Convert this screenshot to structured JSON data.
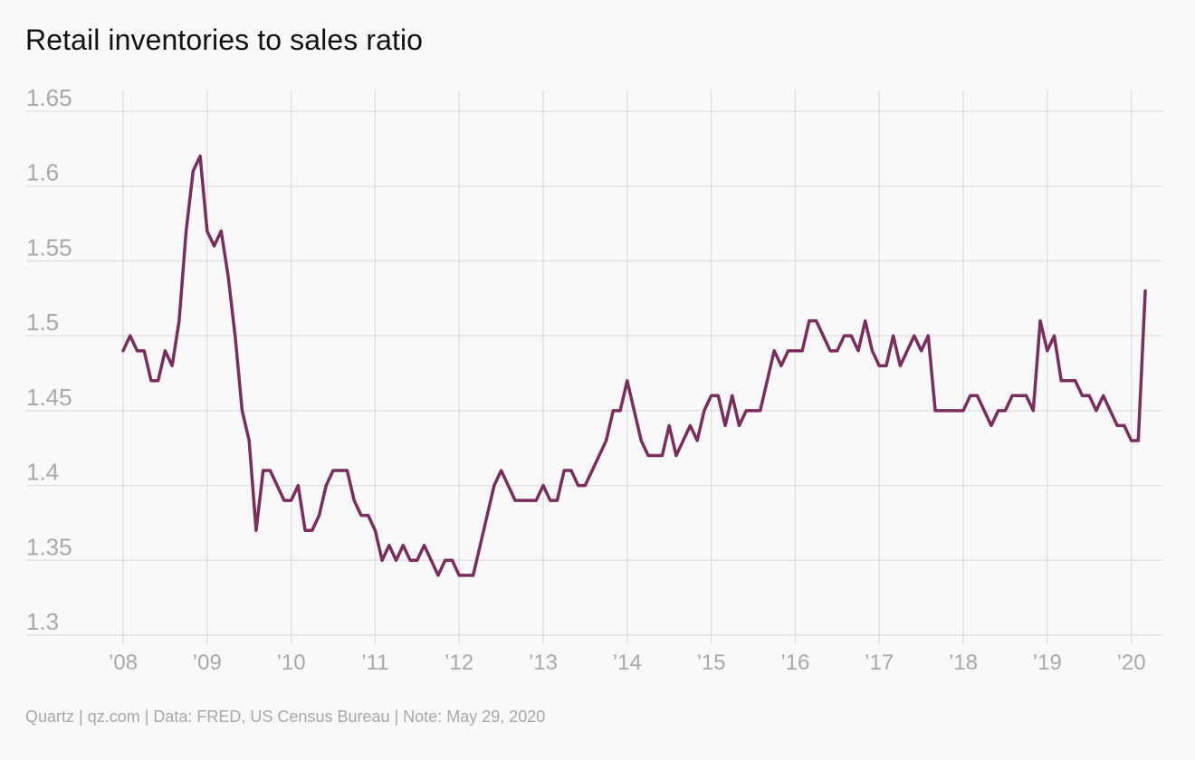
{
  "title": "Retail inventories to sales ratio",
  "footer": "Quartz | qz.com | Data: FRED, US Census Bureau | Note: May 29, 2020",
  "colors": {
    "line": "#7b2d5e",
    "grid": "#e3e3e3",
    "tick_text": "#a9a9a9",
    "background": "#f9f9f9"
  },
  "chart_data": {
    "type": "line",
    "title": "Retail inventories to sales ratio",
    "xlabel": "",
    "ylabel": "",
    "grid": true,
    "legend": "none",
    "ylim": [
      1.3,
      1.65
    ],
    "y_ticks": [
      1.3,
      1.35,
      1.4,
      1.45,
      1.5,
      1.55,
      1.6,
      1.65
    ],
    "y_tick_labels": [
      "1.3",
      "1.35",
      "1.4",
      "1.45",
      "1.5",
      "1.55",
      "1.6",
      "1.65"
    ],
    "x_ticks": [
      2008,
      2009,
      2010,
      2011,
      2012,
      2013,
      2014,
      2015,
      2016,
      2017,
      2018,
      2019,
      2020
    ],
    "x_tick_labels": [
      "’08",
      "’09",
      "’10",
      "’11",
      "’12",
      "’13",
      "’14",
      "’15",
      "’16",
      "’17",
      "’18",
      "’19",
      "’20"
    ],
    "x_start": "2008-01",
    "x_end": "2020-03",
    "frequency": "monthly",
    "series": [
      {
        "values": [
          1.49,
          1.5,
          1.49,
          1.49,
          1.47,
          1.47,
          1.49,
          1.48,
          1.51,
          1.57,
          1.61,
          1.62,
          1.57,
          1.56,
          1.57,
          1.54,
          1.5,
          1.45,
          1.43,
          1.37,
          1.41,
          1.41,
          1.4,
          1.39,
          1.39,
          1.4,
          1.37,
          1.37,
          1.38,
          1.4,
          1.41,
          1.41,
          1.41,
          1.39,
          1.38,
          1.38,
          1.37,
          1.35,
          1.36,
          1.35,
          1.36,
          1.35,
          1.35,
          1.36,
          1.35,
          1.34,
          1.35,
          1.35,
          1.34,
          1.34,
          1.34,
          1.36,
          1.38,
          1.4,
          1.41,
          1.4,
          1.39,
          1.39,
          1.39,
          1.39,
          1.4,
          1.39,
          1.39,
          1.41,
          1.41,
          1.4,
          1.4,
          1.41,
          1.42,
          1.43,
          1.45,
          1.45,
          1.47,
          1.45,
          1.43,
          1.42,
          1.42,
          1.42,
          1.44,
          1.42,
          1.43,
          1.44,
          1.43,
          1.45,
          1.46,
          1.46,
          1.44,
          1.46,
          1.44,
          1.45,
          1.45,
          1.45,
          1.47,
          1.49,
          1.48,
          1.49,
          1.49,
          1.49,
          1.51,
          1.51,
          1.5,
          1.49,
          1.49,
          1.5,
          1.5,
          1.49,
          1.51,
          1.49,
          1.48,
          1.48,
          1.5,
          1.48,
          1.49,
          1.5,
          1.49,
          1.5,
          1.45,
          1.45,
          1.45,
          1.45,
          1.45,
          1.46,
          1.46,
          1.45,
          1.44,
          1.45,
          1.45,
          1.46,
          1.46,
          1.46,
          1.45,
          1.51,
          1.49,
          1.5,
          1.47,
          1.47,
          1.47,
          1.46,
          1.46,
          1.45,
          1.46,
          1.45,
          1.44,
          1.44,
          1.43,
          1.43,
          1.53
        ]
      }
    ]
  }
}
